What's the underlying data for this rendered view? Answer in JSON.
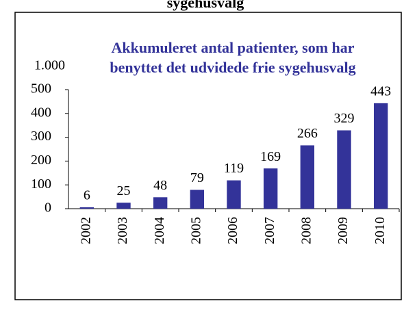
{
  "chart_data": {
    "type": "bar",
    "header": "sygehusvalg",
    "title": [
      "Akkumuleret antal patienter, som har",
      "benyttet det udvidede frie sygehusvalg"
    ],
    "annotation": "1.000",
    "categories": [
      "2002",
      "2003",
      "2004",
      "2005",
      "2006",
      "2007",
      "2008",
      "2009",
      "2010"
    ],
    "values": [
      6,
      25,
      48,
      79,
      119,
      169,
      266,
      329,
      443
    ],
    "color": "#333399",
    "ylim": [
      0,
      500
    ],
    "yticks": [
      0,
      100,
      200,
      300,
      400,
      500
    ],
    "grid": false
  }
}
